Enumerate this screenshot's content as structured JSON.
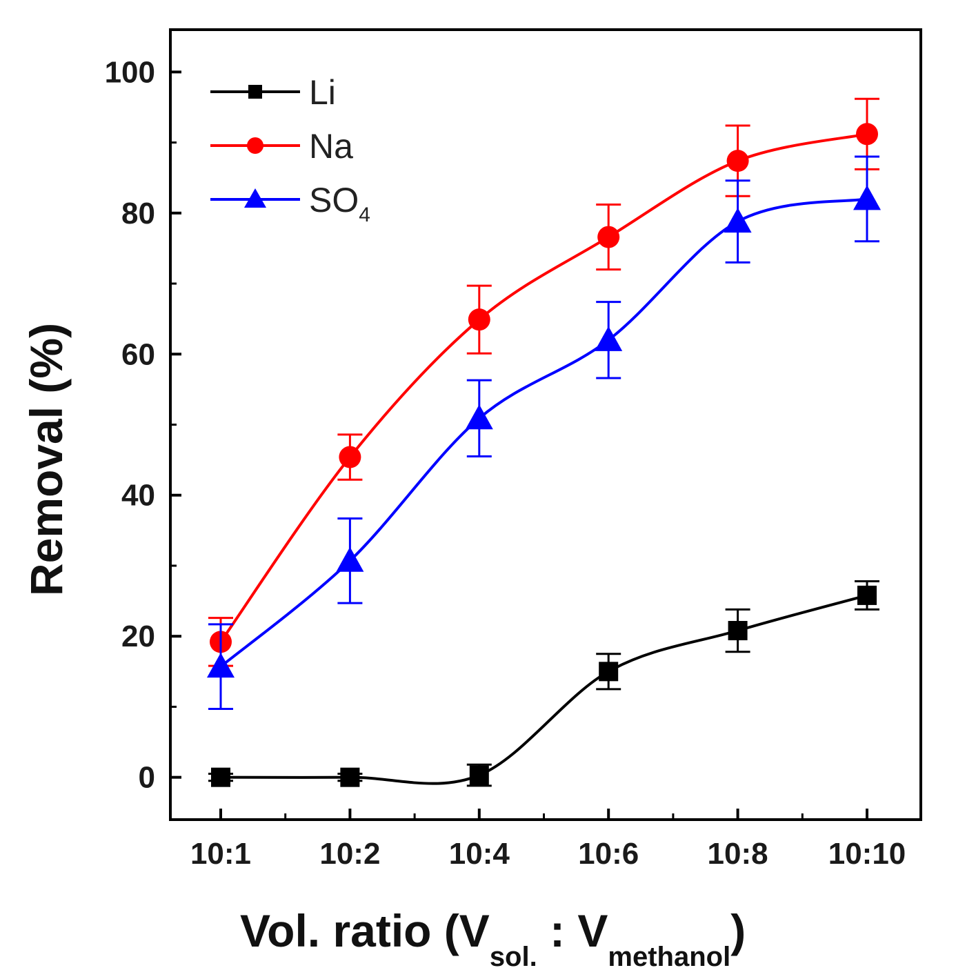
{
  "chart_data": {
    "type": "line",
    "title": "",
    "xlabel": "Vol. ratio (V",
    "xlabel_sub1": "sol.",
    "xlabel_mid": " : V",
    "xlabel_sub2": "methanol",
    "xlabel_end": ")",
    "ylabel": "Removal (%)",
    "categories": [
      "10:1",
      "10:2",
      "10:4",
      "10:6",
      "10:8",
      "10:10"
    ],
    "ylim": [
      -6,
      106
    ],
    "yticks": [
      0,
      20,
      40,
      60,
      80,
      100
    ],
    "grid": false,
    "legend_position": "top-left",
    "series": [
      {
        "name": "Li",
        "color": "#000000",
        "marker": "square",
        "values": [
          0,
          0,
          0.3,
          15,
          20.8,
          25.8
        ],
        "errors": [
          0.5,
          0.5,
          1.5,
          2.5,
          3,
          2
        ]
      },
      {
        "name": "Na",
        "color": "#ff0000",
        "marker": "circle",
        "values": [
          19.2,
          45.4,
          64.9,
          76.6,
          87.4,
          91.2
        ],
        "errors": [
          3.4,
          3.2,
          4.8,
          4.6,
          5,
          5
        ]
      },
      {
        "name": "SO",
        "name_sub": "4",
        "color": "#0000ff",
        "marker": "triangle",
        "values": [
          15.7,
          30.7,
          50.9,
          62,
          78.8,
          82
        ],
        "errors": [
          6,
          6,
          5.4,
          5.4,
          5.8,
          6
        ]
      }
    ]
  }
}
